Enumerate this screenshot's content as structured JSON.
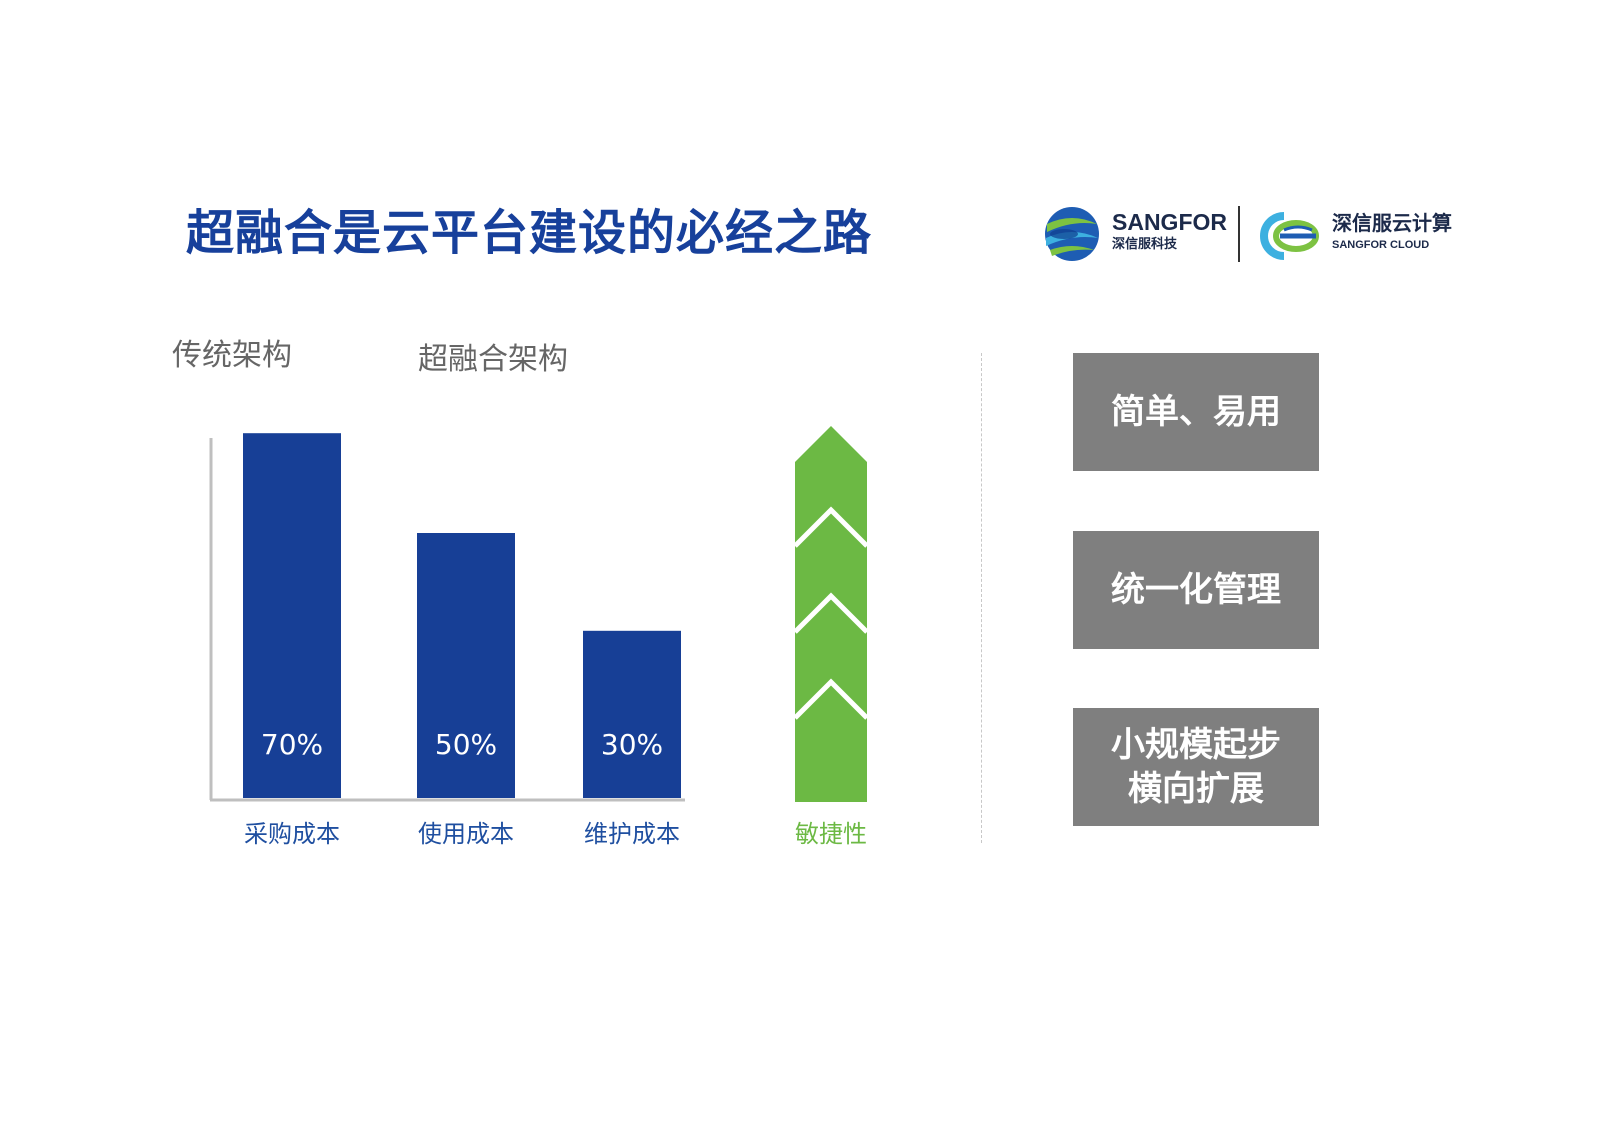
{
  "title": "超融合是云平台建设的必经之路",
  "logos": {
    "sangfor_name": "SANGFOR",
    "sangfor_sub": "深信服科技",
    "cloud_name": "深信服云计算",
    "cloud_sub": "SANGFOR CLOUD"
  },
  "legend": {
    "traditional": "传统架构",
    "hci": "超融合架构"
  },
  "colors": {
    "bar": "#173f96",
    "arrow": "#6cb944",
    "axis": "#bfbfbf",
    "category_text": "#1f4fa0",
    "arrow_text": "#6cb944"
  },
  "chart_data": {
    "type": "bar",
    "categories": [
      "采购成本",
      "使用成本",
      "维护成本"
    ],
    "values": [
      70,
      50,
      30
    ],
    "data_labels": [
      "70%",
      "50%",
      "30%"
    ],
    "arrow_label": "敏捷性"
  },
  "benefits": [
    "简单、易用",
    "统一化管理",
    "小规模起步\n横向扩展"
  ]
}
